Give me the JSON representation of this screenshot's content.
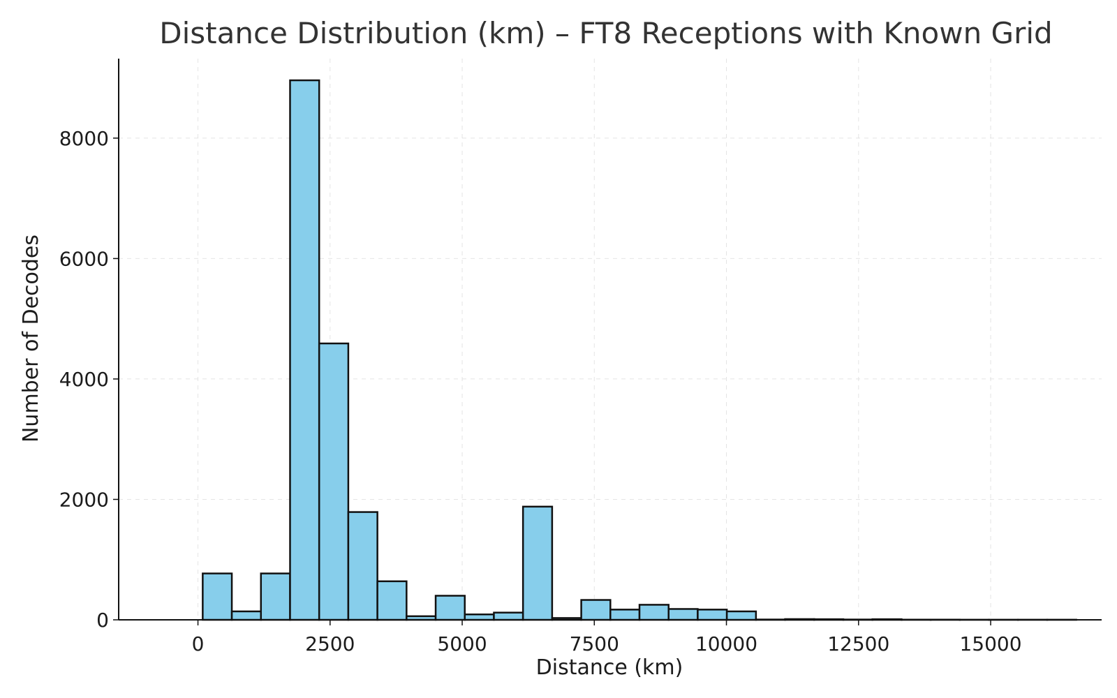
{
  "chart_data": {
    "type": "bar",
    "title": "Distance Distribution (km) – FT8 Receptions with Known Grid",
    "xlabel": "Distance (km)",
    "ylabel": "Number of Decodes",
    "xlim": [
      -1500,
      17100
    ],
    "ylim": [
      0,
      9320
    ],
    "x_ticks": [
      0,
      2500,
      5000,
      7500,
      10000,
      12500,
      15000
    ],
    "x_tick_labels": [
      "0",
      "2500",
      "5000",
      "7500",
      "10000",
      "12500",
      "15000"
    ],
    "y_ticks": [
      0,
      2000,
      4000,
      6000,
      8000
    ],
    "y_tick_labels": [
      "0",
      "2000",
      "4000",
      "6000",
      "8000"
    ],
    "grid": true,
    "bar_color": "#87ceeb",
    "edge_color": "#111111",
    "bins": [
      {
        "start": 90,
        "end": 641,
        "value": 770
      },
      {
        "start": 641,
        "end": 1192,
        "value": 140
      },
      {
        "start": 1192,
        "end": 1743,
        "value": 770
      },
      {
        "start": 1743,
        "end": 2294,
        "value": 8960
      },
      {
        "start": 2294,
        "end": 2845,
        "value": 4590
      },
      {
        "start": 2845,
        "end": 3396,
        "value": 1790
      },
      {
        "start": 3396,
        "end": 3947,
        "value": 640
      },
      {
        "start": 3947,
        "end": 4498,
        "value": 60
      },
      {
        "start": 4498,
        "end": 5049,
        "value": 400
      },
      {
        "start": 5049,
        "end": 5600,
        "value": 90
      },
      {
        "start": 5600,
        "end": 6151,
        "value": 120
      },
      {
        "start": 6151,
        "end": 6702,
        "value": 1880
      },
      {
        "start": 6702,
        "end": 7253,
        "value": 30
      },
      {
        "start": 7253,
        "end": 7804,
        "value": 330
      },
      {
        "start": 7804,
        "end": 8355,
        "value": 170
      },
      {
        "start": 8355,
        "end": 8906,
        "value": 250
      },
      {
        "start": 8906,
        "end": 9457,
        "value": 180
      },
      {
        "start": 9457,
        "end": 10008,
        "value": 170
      },
      {
        "start": 10008,
        "end": 10559,
        "value": 140
      },
      {
        "start": 10559,
        "end": 11110,
        "value": 5
      },
      {
        "start": 11110,
        "end": 11661,
        "value": 12
      },
      {
        "start": 11661,
        "end": 12212,
        "value": 10
      },
      {
        "start": 12212,
        "end": 12763,
        "value": 5
      },
      {
        "start": 12763,
        "end": 13314,
        "value": 10
      },
      {
        "start": 13314,
        "end": 13865,
        "value": 3
      },
      {
        "start": 13865,
        "end": 14416,
        "value": 3
      },
      {
        "start": 14416,
        "end": 14967,
        "value": 2
      },
      {
        "start": 14967,
        "end": 15518,
        "value": 2
      },
      {
        "start": 15518,
        "end": 16069,
        "value": 2
      },
      {
        "start": 16069,
        "end": 16620,
        "value": 2
      }
    ]
  }
}
